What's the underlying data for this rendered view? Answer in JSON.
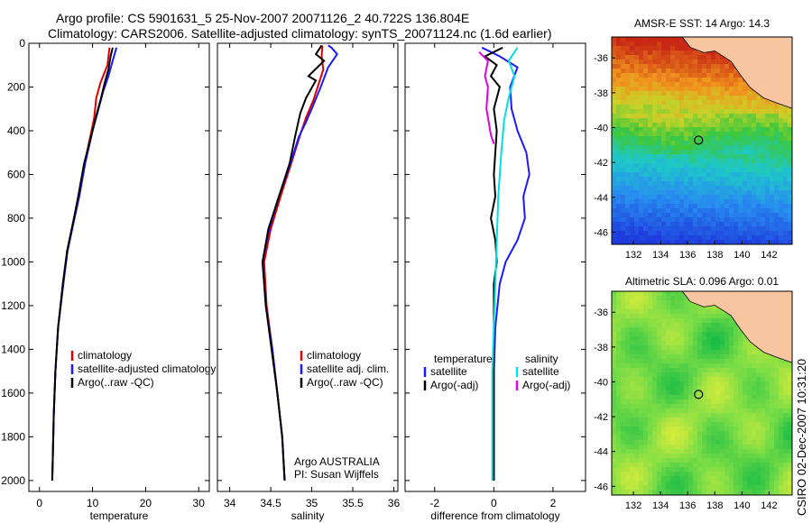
{
  "title": {
    "line1": "Argo profile: CS 5901631_5 25-Nov-2007 20071126_2 40.722S 136.804E",
    "line2": "Climatology: CARS2006. Satellite-adjusted climatology: synTS_20071124.nc (1.6d earlier)"
  },
  "stamp": "CSIRO 02-Dec-2007 10:31:20",
  "colors": {
    "climatology": "#e00000",
    "satellite": "#1a1aff",
    "argo": "#000000",
    "salinity_sat": "#00e0e0",
    "salinity_argo": "#e000e0"
  },
  "chart_data": [
    {
      "type": "line",
      "id": "temperature",
      "xlabel": "temperature",
      "ylabel": "",
      "xlim": [
        -2,
        32
      ],
      "ylim": [
        2050,
        0
      ],
      "xticks": [
        "0",
        "10",
        "20",
        "30"
      ],
      "xtick_values": [
        0,
        10,
        20,
        30
      ],
      "yticks": [
        "0",
        "200",
        "400",
        "600",
        "800",
        "1000",
        "1200",
        "1400",
        "1600",
        "1800",
        "2000"
      ],
      "legend": {
        "placement": "lower-right",
        "entries": [
          "climatology",
          "satellite-adjusted climatology",
          "Argo(..raw -QC)"
        ]
      },
      "series": [
        {
          "name": "climatology",
          "color": "#e00000",
          "points": [
            [
              13.2,
              20
            ],
            [
              12.8,
              100
            ],
            [
              11.5,
              180
            ],
            [
              10.7,
              250
            ],
            [
              10.3,
              340
            ],
            [
              9.8,
              400
            ],
            [
              8.5,
              550
            ],
            [
              7.5,
              700
            ],
            [
              6.5,
              800
            ],
            [
              5.2,
              950
            ],
            [
              4.5,
              1100
            ],
            [
              3.5,
              1300
            ],
            [
              3.0,
              1500
            ],
            [
              2.7,
              1700
            ],
            [
              2.5,
              1900
            ],
            [
              2.4,
              2000
            ]
          ]
        },
        {
          "name": "satellite-adjusted climatology",
          "color": "#1a1aff",
          "points": [
            [
              14.5,
              20
            ],
            [
              13.8,
              80
            ],
            [
              13.0,
              150
            ],
            [
              12.0,
              220
            ],
            [
              10.8,
              330
            ],
            [
              10.0,
              400
            ],
            [
              8.6,
              550
            ],
            [
              7.5,
              700
            ],
            [
              6.6,
              800
            ],
            [
              5.3,
              950
            ],
            [
              4.5,
              1100
            ],
            [
              3.5,
              1300
            ],
            [
              3.0,
              1500
            ],
            [
              2.7,
              1700
            ],
            [
              2.5,
              1900
            ],
            [
              2.4,
              2000
            ]
          ]
        },
        {
          "name": "Argo(..raw -QC)",
          "color": "#000000",
          "points": [
            [
              13.8,
              20
            ],
            [
              13.4,
              60
            ],
            [
              13.0,
              120
            ],
            [
              12.3,
              180
            ],
            [
              11.5,
              260
            ],
            [
              10.6,
              340
            ],
            [
              10.0,
              400
            ],
            [
              8.4,
              550
            ],
            [
              7.3,
              700
            ],
            [
              6.5,
              800
            ],
            [
              5.2,
              950
            ],
            [
              4.4,
              1100
            ],
            [
              3.5,
              1300
            ],
            [
              3.0,
              1500
            ],
            [
              2.7,
              1700
            ],
            [
              2.5,
              1900
            ],
            [
              2.4,
              2000
            ]
          ]
        }
      ]
    },
    {
      "type": "line",
      "id": "salinity",
      "xlabel": "salinity",
      "ylabel": "",
      "xlim": [
        33.85,
        36.05
      ],
      "ylim": [
        2050,
        0
      ],
      "xticks": [
        "34",
        "34.5",
        "35",
        "35.5",
        "36"
      ],
      "xtick_values": [
        34,
        34.5,
        35,
        35.5,
        36
      ],
      "legend": {
        "placement": "lower-right",
        "entries": [
          "climatology",
          "satellite adj. clim.",
          "Argo(..raw -QC)"
        ]
      },
      "annotation": [
        "Argo AUSTRALIA",
        "PI: Susan Wijffels"
      ],
      "series": [
        {
          "name": "climatology",
          "color": "#e00000",
          "points": [
            [
              35.13,
              10
            ],
            [
              35.12,
              60
            ],
            [
              35.14,
              120
            ],
            [
              35.09,
              180
            ],
            [
              35.02,
              260
            ],
            [
              34.93,
              340
            ],
            [
              34.85,
              430
            ],
            [
              34.75,
              550
            ],
            [
              34.62,
              700
            ],
            [
              34.5,
              850
            ],
            [
              34.42,
              1000
            ],
            [
              34.45,
              1200
            ],
            [
              34.52,
              1400
            ],
            [
              34.58,
              1600
            ],
            [
              34.64,
              1800
            ],
            [
              34.67,
              2000
            ]
          ]
        },
        {
          "name": "satellite adj. clim.",
          "color": "#1a1aff",
          "points": [
            [
              35.2,
              10
            ],
            [
              35.24,
              20
            ],
            [
              35.31,
              50
            ],
            [
              35.2,
              110
            ],
            [
              35.11,
              200
            ],
            [
              35.0,
              300
            ],
            [
              34.93,
              360
            ],
            [
              34.84,
              430
            ],
            [
              34.74,
              550
            ],
            [
              34.6,
              700
            ],
            [
              34.48,
              850
            ],
            [
              34.4,
              1000
            ],
            [
              34.44,
              1200
            ],
            [
              34.52,
              1400
            ],
            [
              34.58,
              1600
            ],
            [
              34.64,
              1800
            ],
            [
              34.67,
              2000
            ]
          ]
        },
        {
          "name": "Argo(..raw -QC)",
          "color": "#000000",
          "points": [
            [
              35.12,
              10
            ],
            [
              35.05,
              50
            ],
            [
              35.15,
              80
            ],
            [
              34.96,
              150
            ],
            [
              35.05,
              170
            ],
            [
              34.93,
              250
            ],
            [
              34.86,
              320
            ],
            [
              34.8,
              420
            ],
            [
              34.73,
              550
            ],
            [
              34.6,
              700
            ],
            [
              34.47,
              850
            ],
            [
              34.4,
              1000
            ],
            [
              34.44,
              1200
            ],
            [
              34.51,
              1400
            ],
            [
              34.58,
              1600
            ],
            [
              34.64,
              1800
            ],
            [
              34.67,
              2000
            ]
          ]
        }
      ]
    },
    {
      "type": "line",
      "id": "difference",
      "xlabel": "difference from climatology",
      "ylabel": "",
      "xlim": [
        -3,
        3.1
      ],
      "ylim": [
        2050,
        0
      ],
      "xticks": [
        "-2",
        "0",
        "2"
      ],
      "xtick_values": [
        -2,
        0,
        2
      ],
      "legend": {
        "placement": "lower-right",
        "entries": [
          "temperature",
          "satellite",
          "Argo(-adj)",
          "salinity",
          "satellite",
          "Argo(-adj)"
        ]
      },
      "series": [
        {
          "name": "temperature satellite",
          "color": "#1a1aff",
          "points": [
            [
              -0.4,
              20
            ],
            [
              0.2,
              60
            ],
            [
              0.8,
              110
            ],
            [
              0.55,
              200
            ],
            [
              0.6,
              300
            ],
            [
              0.8,
              400
            ],
            [
              1.1,
              500
            ],
            [
              1.2,
              600
            ],
            [
              1.0,
              700
            ],
            [
              1.05,
              800
            ],
            [
              0.8,
              900
            ],
            [
              0.4,
              1000
            ],
            [
              0.2,
              1100
            ],
            [
              0.05,
              1300
            ],
            [
              0.0,
              1500
            ],
            [
              0.0,
              2000
            ]
          ]
        },
        {
          "name": "temperature Argo(-adj)",
          "color": "#000000",
          "points": [
            [
              0.3,
              20
            ],
            [
              -0.3,
              60
            ],
            [
              0.1,
              100
            ],
            [
              -0.1,
              150
            ],
            [
              0.2,
              200
            ],
            [
              0.0,
              300
            ],
            [
              0.1,
              400
            ],
            [
              0.05,
              500
            ],
            [
              0.0,
              600
            ],
            [
              0.05,
              700
            ],
            [
              -0.1,
              800
            ],
            [
              0.05,
              900
            ],
            [
              0.1,
              1000
            ],
            [
              0.0,
              1100
            ],
            [
              0.0,
              2000
            ]
          ]
        },
        {
          "name": "salinity satellite",
          "color": "#00e0e0",
          "points": [
            [
              0.8,
              20
            ],
            [
              0.5,
              80
            ],
            [
              0.7,
              150
            ],
            [
              0.5,
              250
            ],
            [
              0.35,
              350
            ],
            [
              0.25,
              500
            ],
            [
              0.15,
              700
            ],
            [
              0.1,
              900
            ],
            [
              0.05,
              1100
            ],
            [
              0.0,
              1300
            ],
            [
              -0.05,
              1500
            ],
            [
              -0.05,
              2000
            ]
          ]
        },
        {
          "name": "salinity Argo(-adj)",
          "color": "#e000e0",
          "points": [
            [
              -0.5,
              40
            ],
            [
              -0.2,
              80
            ],
            [
              -0.3,
              150
            ],
            [
              -0.2,
              200
            ],
            [
              -0.25,
              300
            ],
            [
              -0.1,
              420
            ],
            [
              0.0,
              460
            ]
          ]
        }
      ]
    },
    {
      "type": "heatmap",
      "id": "sst_map",
      "title": "AMSR-E SST: 14 Argo: 14.3",
      "xticks": [
        "132",
        "134",
        "136",
        "138",
        "140",
        "142"
      ],
      "xtick_values": [
        132,
        134,
        136,
        138,
        140,
        142
      ],
      "yticks": [
        "-36",
        "-38",
        "-40",
        "-42",
        "-44",
        "-46"
      ],
      "ytick_values": [
        -36,
        -38,
        -40,
        -42,
        -44,
        -46
      ],
      "xlim": [
        130.4,
        143.7
      ],
      "ylim": [
        -46.7,
        -34.8
      ],
      "marker": [
        136.8,
        -40.72
      ]
    },
    {
      "type": "heatmap",
      "id": "sla_map",
      "title": "Altimetric SLA: 0.096 Argo: 0.01",
      "xticks": [
        "132",
        "134",
        "136",
        "138",
        "140",
        "142"
      ],
      "xtick_values": [
        132,
        134,
        136,
        138,
        140,
        142
      ],
      "yticks": [
        "-36",
        "-38",
        "-40",
        "-42",
        "-44",
        "-46"
      ],
      "ytick_values": [
        -36,
        -38,
        -40,
        -42,
        -44,
        -46
      ],
      "xlim": [
        130.4,
        143.7
      ],
      "ylim": [
        -46.5,
        -34.8
      ],
      "marker": [
        136.8,
        -40.72
      ]
    }
  ]
}
